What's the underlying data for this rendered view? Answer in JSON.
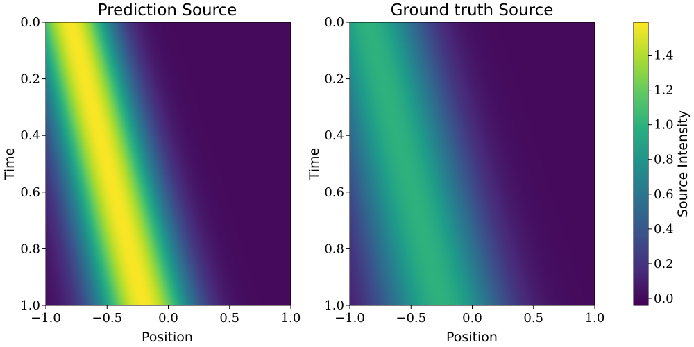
{
  "chart_data": [
    {
      "type": "heatmap",
      "title": "Prediction Source",
      "xlabel": "Position",
      "ylabel": "Time",
      "xlim": [
        -1.0,
        1.0
      ],
      "ylim": [
        0.0,
        1.0
      ],
      "y_inverted": true,
      "x_ticks": [
        "−1.0",
        "−0.5",
        "0.0",
        "0.5",
        "1.0"
      ],
      "x_tick_values": [
        -1.0,
        -0.5,
        0.0,
        0.5,
        1.0
      ],
      "y_ticks": [
        "0.0",
        "0.2",
        "0.4",
        "0.6",
        "0.8",
        "1.0"
      ],
      "y_tick_values": [
        0.0,
        0.2,
        0.4,
        0.6,
        0.8,
        1.0
      ],
      "field": {
        "peak": 1.58,
        "center_t0": -0.8,
        "center_t1": -0.2,
        "width_t0": 0.24,
        "width_t1": 0.28
      }
    },
    {
      "type": "heatmap",
      "title": "Ground truth Source",
      "xlabel": "Position",
      "ylabel": "Time",
      "xlim": [
        -1.0,
        1.0
      ],
      "ylim": [
        0.0,
        1.0
      ],
      "y_inverted": true,
      "x_ticks": [
        "−1.0",
        "−0.5",
        "0.0",
        "0.5",
        "1.0"
      ],
      "x_tick_values": [
        -1.0,
        -0.5,
        0.0,
        0.5,
        1.0
      ],
      "y_ticks": [
        "0.0",
        "0.2",
        "0.4",
        "0.6",
        "0.8",
        "1.0"
      ],
      "y_tick_values": [
        0.0,
        0.2,
        0.4,
        0.6,
        0.8,
        1.0
      ],
      "field": {
        "peak": 1.0,
        "center_t0": -0.85,
        "center_t1": -0.25,
        "width_t0": 0.32,
        "width_t1": 0.36
      }
    }
  ],
  "colorbar": {
    "label": "Source Intensity",
    "vmin": -0.04,
    "vmax": 1.59,
    "colormap": "viridis",
    "ticks": [
      "0.0",
      "0.2",
      "0.4",
      "0.6",
      "0.8",
      "1.0",
      "1.2",
      "1.4"
    ],
    "tick_values": [
      0.0,
      0.2,
      0.4,
      0.6,
      0.8,
      1.0,
      1.2,
      1.4
    ]
  }
}
